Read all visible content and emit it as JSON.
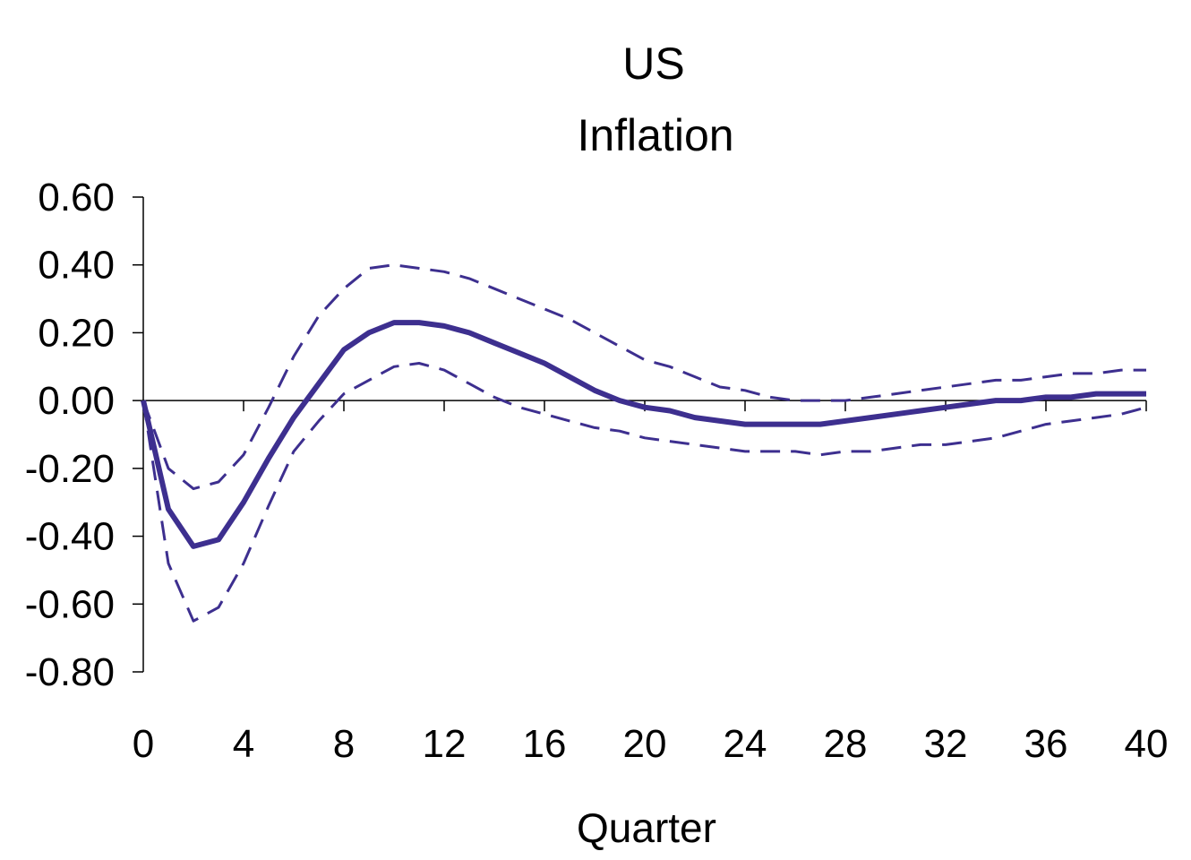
{
  "chart_data": {
    "type": "line",
    "title": "US",
    "subtitle": "Inflation",
    "xlabel": "Quarter",
    "ylabel": "",
    "xlim": [
      0,
      40
    ],
    "ylim": [
      -0.8,
      0.6
    ],
    "x_ticks": [
      0,
      4,
      8,
      12,
      16,
      20,
      24,
      28,
      32,
      36,
      40
    ],
    "x_tick_labels": [
      "0",
      "4",
      "8",
      "12",
      "16",
      "20",
      "24",
      "28",
      "32",
      "36",
      "40"
    ],
    "y_ticks": [
      0.6,
      0.4,
      0.2,
      0.0,
      -0.2,
      -0.4,
      -0.6,
      -0.8
    ],
    "y_tick_labels": [
      "0.60",
      "0.40",
      "0.20",
      "0.00",
      "-0.20",
      "-0.40",
      "-0.60",
      "-0.80"
    ],
    "grid": false,
    "line_color": "#3d2f8f",
    "x": [
      0,
      1,
      2,
      3,
      4,
      5,
      6,
      7,
      8,
      9,
      10,
      11,
      12,
      13,
      14,
      15,
      16,
      17,
      18,
      19,
      20,
      21,
      22,
      23,
      24,
      25,
      26,
      27,
      28,
      29,
      30,
      31,
      32,
      33,
      34,
      35,
      36,
      37,
      38,
      39,
      40
    ],
    "series": [
      {
        "style": "solid",
        "values": [
          0.0,
          -0.32,
          -0.43,
          -0.41,
          -0.3,
          -0.17,
          -0.05,
          0.05,
          0.15,
          0.2,
          0.23,
          0.23,
          0.22,
          0.2,
          0.17,
          0.14,
          0.11,
          0.07,
          0.03,
          0.0,
          -0.02,
          -0.03,
          -0.05,
          -0.06,
          -0.07,
          -0.07,
          -0.07,
          -0.07,
          -0.06,
          -0.05,
          -0.04,
          -0.03,
          -0.02,
          -0.01,
          0.0,
          0.0,
          0.01,
          0.01,
          0.02,
          0.02,
          0.02
        ]
      },
      {
        "style": "dashed",
        "values": [
          0.0,
          -0.2,
          -0.26,
          -0.24,
          -0.16,
          -0.02,
          0.13,
          0.25,
          0.33,
          0.39,
          0.4,
          0.39,
          0.38,
          0.36,
          0.33,
          0.3,
          0.27,
          0.24,
          0.2,
          0.16,
          0.12,
          0.1,
          0.07,
          0.04,
          0.03,
          0.01,
          0.0,
          0.0,
          0.0,
          0.01,
          0.02,
          0.03,
          0.04,
          0.05,
          0.06,
          0.06,
          0.07,
          0.08,
          0.08,
          0.09,
          0.09
        ]
      },
      {
        "style": "dashed",
        "values": [
          0.0,
          -0.48,
          -0.65,
          -0.61,
          -0.48,
          -0.31,
          -0.15,
          -0.06,
          0.02,
          0.06,
          0.1,
          0.11,
          0.09,
          0.05,
          0.01,
          -0.02,
          -0.04,
          -0.06,
          -0.08,
          -0.09,
          -0.11,
          -0.12,
          -0.13,
          -0.14,
          -0.15,
          -0.15,
          -0.15,
          -0.16,
          -0.15,
          -0.15,
          -0.14,
          -0.13,
          -0.13,
          -0.12,
          -0.11,
          -0.09,
          -0.07,
          -0.06,
          -0.05,
          -0.04,
          -0.02
        ]
      }
    ]
  }
}
